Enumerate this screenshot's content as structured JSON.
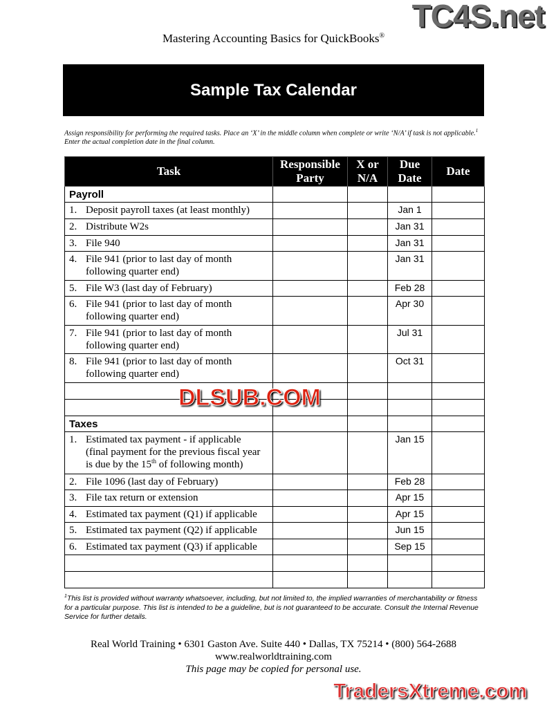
{
  "header": {
    "title": "Mastering Accounting Basics for QuickBooks",
    "reg": "®"
  },
  "banner": "Sample Tax Calendar",
  "intro": {
    "part1": "Assign responsibility for performing the required tasks. Place an ‘X’ in the middle column when complete or write ‘N/A’ if task is not applicable.",
    "sup": "1",
    "part2": " Enter the actual completion date in the final column."
  },
  "table": {
    "headers": [
      "Task",
      "Responsible Party",
      "X or N/A",
      "Due Date",
      "Date"
    ],
    "payroll": {
      "label": "Payroll",
      "rows": [
        {
          "n": "1.",
          "task": "Deposit payroll taxes (at least monthly)",
          "due": "Jan 1"
        },
        {
          "n": "2.",
          "task": "Distribute W2s",
          "due": "Jan 31"
        },
        {
          "n": "3.",
          "task": "File 940",
          "due": "Jan 31"
        },
        {
          "n": "4.",
          "task": "File 941 (prior to last day of month following quarter end)",
          "due": "Jan 31"
        },
        {
          "n": "5.",
          "task": "File W3 (last day of February)",
          "due": "Feb 28"
        },
        {
          "n": "6.",
          "task": "File 941 (prior to last day of month following quarter end)",
          "due": "Apr 30"
        },
        {
          "n": "7.",
          "task": "File 941 (prior to last day of month following quarter end)",
          "due": "Jul 31"
        },
        {
          "n": "8.",
          "task": "File 941 (prior to last day of month following quarter end)",
          "due": "Oct 31"
        }
      ]
    },
    "taxes": {
      "label": "Taxes",
      "rows": [
        {
          "n": "1.",
          "task": "Estimated tax payment - if applicable (final payment for the previous fiscal year is due by the 15th of following month)",
          "due": "Jan 15"
        },
        {
          "n": "2.",
          "task": "File 1096 (last day of February)",
          "due": "Feb 28"
        },
        {
          "n": "3.",
          "task": "File tax return or extension",
          "due": "Apr 15"
        },
        {
          "n": "4.",
          "task": "Estimated tax payment (Q1) if applicable",
          "due": "Apr 15"
        },
        {
          "n": "5.",
          "task": "Estimated tax payment (Q2) if applicable",
          "due": "Jun 15"
        },
        {
          "n": "6.",
          "task": "Estimated tax payment (Q3) if applicable",
          "due": "Sep 15"
        }
      ]
    }
  },
  "footnote": {
    "sup": "1",
    "text": "This list is provided without warranty whatsoever, including, but not limited to, the implied warranties of merchantability or fitness for a particular purpose. This list is intended to be a guideline, but is not guaranteed to be accurate. Consult the Internal Revenue Service for further details."
  },
  "footer": {
    "address": "Real World Training • 6301 Gaston Ave. Suite 440 • Dallas, TX 75214 • (800) 564-2688",
    "url": "www.realworldtraining.com",
    "note": "This page may be copied for personal use."
  },
  "watermarks": [
    "TC4S.net",
    "DLSUB.COM",
    "TradersXtreme.com"
  ]
}
